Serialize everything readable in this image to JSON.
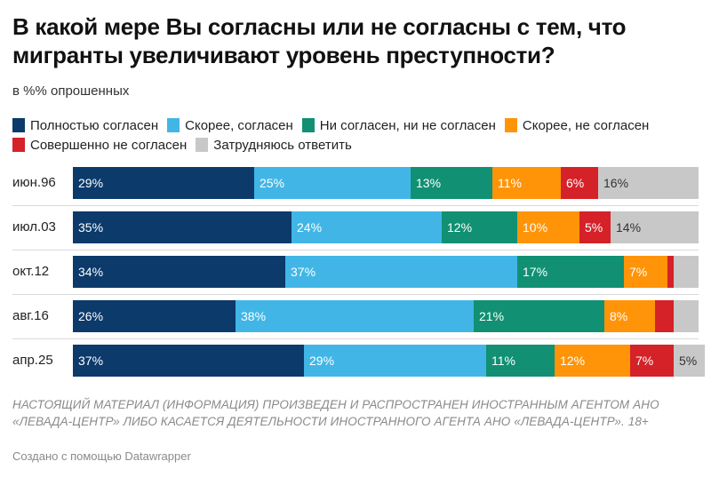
{
  "header": {
    "title": "В какой мере Вы согласны или не согласны с тем, что мигранты увеличивают уровень преступности?",
    "subtitle": "в %% опрошенных"
  },
  "footer": {
    "note": "НАСТОЯЩИЙ МАТЕРИАЛ (ИНФОРМАЦИЯ) ПРОИЗВЕДЕН И РАСПРОСТРАНЕН ИНОСТРАННЫМ АГЕНТОМ АНО «ЛЕВАДА-ЦЕНТР» ЛИБО КАСАЕТСЯ ДЕЯТЕЛЬНОСТИ ИНОСТРАННОГО АГЕНТА АНО «ЛЕВАДА-ЦЕНТР». 18+",
    "credit": "Создано с помощью Datawrapper"
  },
  "chart_data": {
    "type": "bar",
    "orientation": "horizontal",
    "stacked": true,
    "normalized_to": 100,
    "legend_position": "top",
    "categories": [
      "июн.96",
      "июл.03",
      "окт.12",
      "авг.16",
      "апр.25"
    ],
    "series": [
      {
        "name": "Полностью согласен",
        "color": "#0b3a6b",
        "label_color": "#ffffff",
        "values": [
          29,
          35,
          34,
          26,
          37
        ]
      },
      {
        "name": "Скорее, согласен",
        "color": "#41b6e6",
        "label_color": "#ffffff",
        "values": [
          25,
          24,
          37,
          38,
          29
        ]
      },
      {
        "name": "Ни согласен, ни не согласен",
        "color": "#119073",
        "label_color": "#ffffff",
        "values": [
          13,
          12,
          17,
          21,
          11
        ]
      },
      {
        "name": "Скорее, не согласен",
        "color": "#ff9409",
        "label_color": "#ffffff",
        "values": [
          11,
          10,
          7,
          8,
          12
        ]
      },
      {
        "name": "Совершенно не согласен",
        "color": "#d52128",
        "label_color": "#ffffff",
        "values": [
          6,
          5,
          1,
          3,
          7
        ]
      },
      {
        "name": "Затрудняюсь ответить",
        "color": "#c8c8c8",
        "label_color": "#333333",
        "values": [
          16,
          14,
          4,
          4,
          5
        ]
      }
    ],
    "data_labels": [
      [
        "29%",
        "25%",
        "13%",
        "11%",
        "6%",
        "16%"
      ],
      [
        "35%",
        "24%",
        "12%",
        "10%",
        "5%",
        "14%"
      ],
      [
        "34%",
        "37%",
        "17%",
        "7%",
        "",
        ""
      ],
      [
        "26%",
        "38%",
        "21%",
        "8%",
        "",
        ""
      ],
      [
        "37%",
        "29%",
        "11%",
        "12%",
        "7%",
        "5%"
      ]
    ]
  }
}
